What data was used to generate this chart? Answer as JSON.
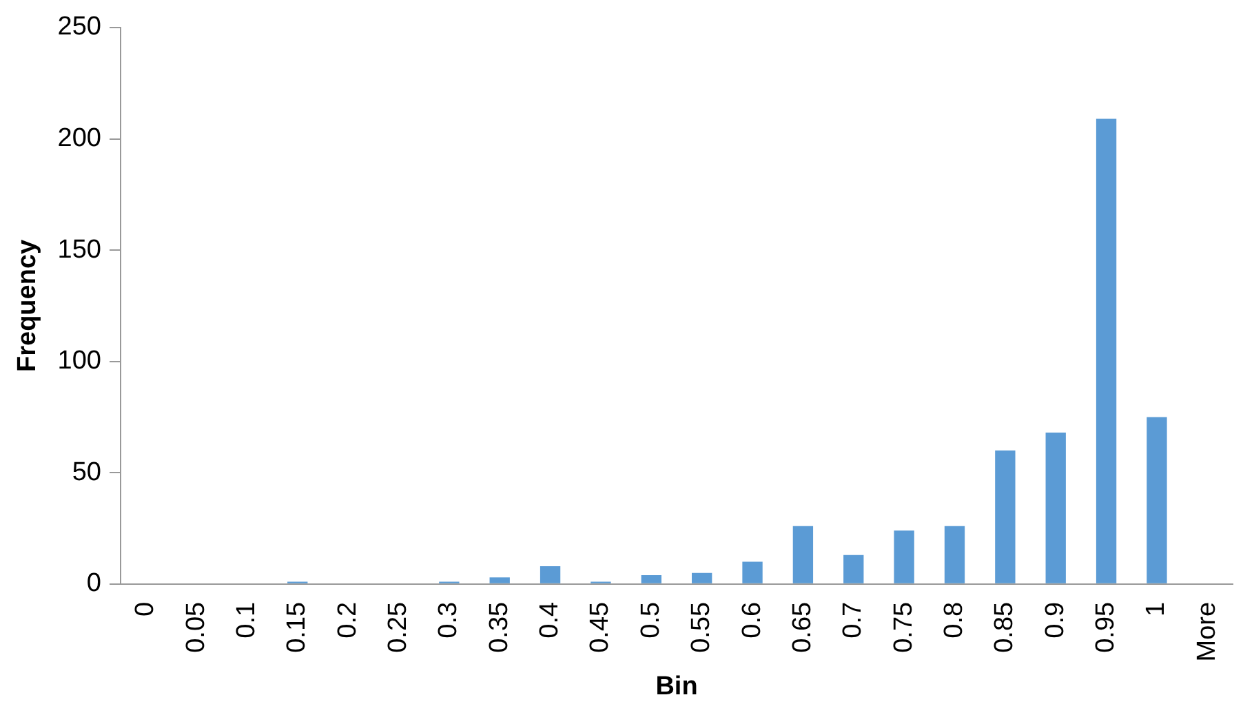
{
  "chart_data": {
    "type": "bar",
    "xlabel": "Bin",
    "ylabel": "Frequency",
    "categories": [
      "0",
      "0.05",
      "0.1",
      "0.15",
      "0.2",
      "0.25",
      "0.3",
      "0.35",
      "0.4",
      "0.45",
      "0.5",
      "0.55",
      "0.6",
      "0.65",
      "0.7",
      "0.75",
      "0.8",
      "0.85",
      "0.9",
      "0.95",
      "1",
      "More"
    ],
    "values": [
      0,
      0,
      0,
      1,
      0,
      0,
      1,
      3,
      8,
      1,
      4,
      5,
      10,
      26,
      13,
      24,
      26,
      60,
      68,
      209,
      75,
      0
    ],
    "color": "#5b9bd5",
    "ylim": [
      0,
      250
    ],
    "yticks": [
      0,
      50,
      100,
      150,
      200,
      250
    ],
    "grid": false,
    "legend": false
  }
}
